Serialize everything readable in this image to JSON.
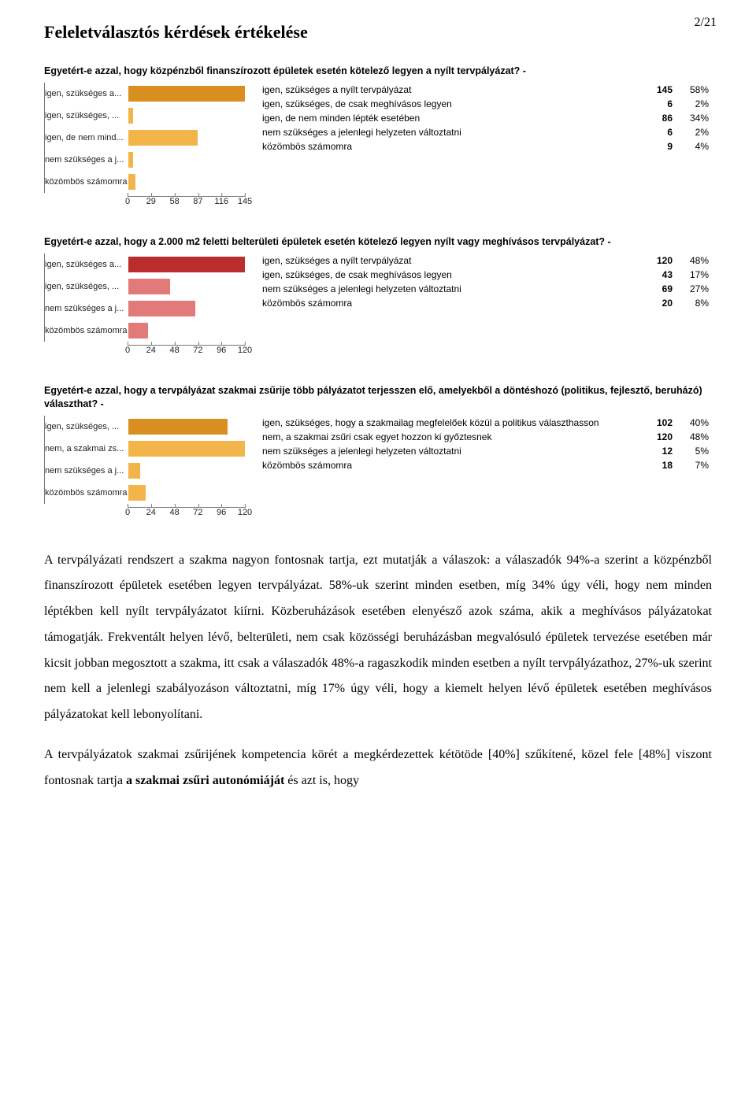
{
  "page_number": "2/21",
  "main_title": "Feleletválasztós kérdések értékelése",
  "charts": [
    {
      "title": "Egyetért-e azzal, hogy közpénzből finanszírozott épületek esetén kötelező legyen a nyílt tervpályázat? -",
      "bar_color_light": "#f3b44a",
      "bar_color_dark": "#d98f1f",
      "max": 145,
      "tick_step": 29,
      "ticks": [
        "0",
        "29",
        "58",
        "87",
        "116",
        "145"
      ],
      "bars": [
        {
          "short": "igen, szükséges a...",
          "value": 145
        },
        {
          "short": "igen, szükséges, ...",
          "value": 6
        },
        {
          "short": "igen, de nem mind...",
          "value": 86
        },
        {
          "short": "nem szükséges a j...",
          "value": 6
        },
        {
          "short": "közömbös számomra",
          "value": 9
        }
      ],
      "rows": [
        {
          "label": "igen, szükséges a nyílt tervpályázat",
          "count": "145",
          "pct": "58%"
        },
        {
          "label": "igen, szükséges, de csak meghívásos legyen",
          "count": "6",
          "pct": "2%"
        },
        {
          "label": "igen, de nem minden lépték esetében",
          "count": "86",
          "pct": "34%"
        },
        {
          "label": "nem szükséges a jelenlegi helyzeten változtatni",
          "count": "6",
          "pct": "2%"
        },
        {
          "label": "közömbös számomra",
          "count": "9",
          "pct": "4%"
        }
      ]
    },
    {
      "title": "Egyetért-e azzal, hogy a 2.000 m2 feletti belterületi épületek esetén kötelező legyen nyílt vagy meghívásos tervpályázat? -",
      "bar_color_light": "#e37a7a",
      "bar_color_dark": "#b92d2d",
      "max": 120,
      "tick_step": 24,
      "ticks": [
        "0",
        "24",
        "48",
        "72",
        "96",
        "120"
      ],
      "bars": [
        {
          "short": "igen, szükséges a...",
          "value": 120
        },
        {
          "short": "igen, szükséges, ...",
          "value": 43
        },
        {
          "short": "nem szükséges a j...",
          "value": 69
        },
        {
          "short": "közömbös számomra",
          "value": 20
        }
      ],
      "rows": [
        {
          "label": "igen, szükséges a nyílt tervpályázat",
          "count": "120",
          "pct": "48%"
        },
        {
          "label": "igen, szükséges, de csak meghívásos legyen",
          "count": "43",
          "pct": "17%"
        },
        {
          "label": "nem szükséges a jelenlegi helyzeten változtatni",
          "count": "69",
          "pct": "27%"
        },
        {
          "label": "közömbös számomra",
          "count": "20",
          "pct": "8%"
        }
      ]
    },
    {
      "title": "Egyetért-e azzal, hogy a tervpályázat szakmai zsűrije több pályázatot terjesszen elő, amelyekből a döntéshozó (politikus, fejlesztő, beruházó) választhat? -",
      "bar_color_light": "#f3b44a",
      "bar_color_dark": "#d98f1f",
      "max": 120,
      "tick_step": 24,
      "ticks": [
        "0",
        "24",
        "48",
        "72",
        "96",
        "120"
      ],
      "bars": [
        {
          "short": "igen, szükséges, ...",
          "value": 102
        },
        {
          "short": "nem, a szakmai zs...",
          "value": 120
        },
        {
          "short": "nem szükséges a j...",
          "value": 12
        },
        {
          "short": "közömbös számomra",
          "value": 18
        }
      ],
      "rows": [
        {
          "label": "igen, szükséges, hogy a szakmailag megfelelőek közül a politikus választhasson",
          "count": "102",
          "pct": "40%"
        },
        {
          "label": "nem, a szakmai zsűri csak egyet hozzon ki győztesnek",
          "count": "120",
          "pct": "48%"
        },
        {
          "label": "nem szükséges a jelenlegi helyzeten változtatni",
          "count": "12",
          "pct": "5%"
        },
        {
          "label": "közömbös számomra",
          "count": "18",
          "pct": "7%"
        }
      ]
    }
  ],
  "body_paragraphs": [
    "A tervpályázati rendszert a szakma nagyon fontosnak tartja, ezt mutatják a válaszok: a válaszadók 94%-a szerint a közpénzből finanszírozott épületek esetében legyen tervpályázat. 58%-uk szerint minden esetben, míg 34% úgy véli, hogy nem minden léptékben kell nyílt tervpályázatot kiírni. Közberuházások esetében elenyésző azok száma, akik a meghívásos pályázatokat támogatják. Frekventált helyen lévő, belterületi, nem csak közösségi beruházásban megvalósuló épületek tervezése esetében már kicsit jobban megosztott a szakma, itt csak a válaszadók 48%-a ragaszkodik minden esetben a nyílt tervpályázathoz, 27%-uk szerint nem kell a jelenlegi szabályozáson változtatni, míg 17% úgy véli, hogy a kiemelt helyen lévő épületek esetében meghívásos pályázatokat kell lebonyolítani.",
    "A tervpályázatok szakmai zsűrijének kompetencia körét a megkérdezettek kétötöde [40%] szűkítené, közel fele [48%] viszont fontosnak tartja <b>a szakmai zsűri autonómiáját</b> és azt is, hogy"
  ]
}
